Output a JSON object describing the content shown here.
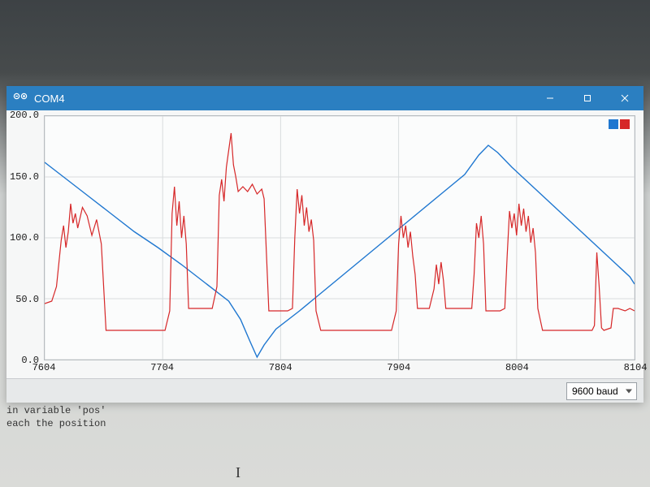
{
  "window": {
    "title": "COM4",
    "titlebar_bg": "#2b7fc1",
    "titlebar_fg": "#ffffff"
  },
  "chart": {
    "type": "line",
    "background_color": "#fbfcfc",
    "plot_bg": "#f6f7f7",
    "grid_color": "#d9dcde",
    "border_color": "#b7bcc0",
    "xlim": [
      7604,
      8104
    ],
    "ylim": [
      0.0,
      200.0
    ],
    "xticks": [
      7604,
      7704,
      7804,
      7904,
      8004,
      8104
    ],
    "yticks": [
      0.0,
      50.0,
      100.0,
      150.0,
      200.0
    ],
    "ytick_labels": [
      "0.0",
      "50.0",
      "100.0",
      "150.0",
      "200.0"
    ],
    "xtick_labels": [
      "7604",
      "7704",
      "7804",
      "7904",
      "8004",
      "8104"
    ],
    "label_font": "Consolas",
    "label_fontsize": 12,
    "label_color": "#1a1a1a",
    "legend_colors": [
      "#1f77d0",
      "#d62728"
    ],
    "series": [
      {
        "name": "blue",
        "color": "#1f77d0",
        "line_width": 1.4,
        "points": [
          [
            7604,
            162
          ],
          [
            7620,
            150
          ],
          [
            7640,
            135
          ],
          [
            7660,
            120
          ],
          [
            7680,
            105
          ],
          [
            7700,
            92
          ],
          [
            7720,
            78
          ],
          [
            7740,
            63
          ],
          [
            7760,
            48
          ],
          [
            7770,
            33
          ],
          [
            7778,
            15
          ],
          [
            7784,
            2
          ],
          [
            7790,
            12
          ],
          [
            7800,
            25
          ],
          [
            7820,
            40
          ],
          [
            7840,
            56
          ],
          [
            7860,
            72
          ],
          [
            7880,
            88
          ],
          [
            7900,
            104
          ],
          [
            7920,
            120
          ],
          [
            7940,
            136
          ],
          [
            7960,
            152
          ],
          [
            7972,
            168
          ],
          [
            7980,
            176
          ],
          [
            7988,
            170
          ],
          [
            8000,
            158
          ],
          [
            8020,
            140
          ],
          [
            8040,
            122
          ],
          [
            8060,
            104
          ],
          [
            8080,
            86
          ],
          [
            8100,
            68
          ],
          [
            8104,
            62
          ]
        ]
      },
      {
        "name": "red",
        "color": "#d62728",
        "line_width": 1.2,
        "points": [
          [
            7604,
            46
          ],
          [
            7610,
            48
          ],
          [
            7614,
            60
          ],
          [
            7618,
            98
          ],
          [
            7620,
            110
          ],
          [
            7622,
            92
          ],
          [
            7624,
            105
          ],
          [
            7626,
            128
          ],
          [
            7628,
            112
          ],
          [
            7630,
            120
          ],
          [
            7632,
            108
          ],
          [
            7636,
            125
          ],
          [
            7640,
            118
          ],
          [
            7644,
            102
          ],
          [
            7648,
            115
          ],
          [
            7652,
            95
          ],
          [
            7656,
            24
          ],
          [
            7660,
            24
          ],
          [
            7680,
            24
          ],
          [
            7700,
            24
          ],
          [
            7706,
            24
          ],
          [
            7710,
            40
          ],
          [
            7712,
            120
          ],
          [
            7714,
            142
          ],
          [
            7716,
            110
          ],
          [
            7718,
            130
          ],
          [
            7720,
            100
          ],
          [
            7722,
            118
          ],
          [
            7724,
            95
          ],
          [
            7726,
            42
          ],
          [
            7730,
            42
          ],
          [
            7740,
            42
          ],
          [
            7746,
            42
          ],
          [
            7750,
            60
          ],
          [
            7752,
            135
          ],
          [
            7754,
            148
          ],
          [
            7756,
            130
          ],
          [
            7758,
            158
          ],
          [
            7760,
            172
          ],
          [
            7762,
            186
          ],
          [
            7764,
            160
          ],
          [
            7766,
            150
          ],
          [
            7768,
            138
          ],
          [
            7772,
            142
          ],
          [
            7776,
            138
          ],
          [
            7780,
            144
          ],
          [
            7784,
            136
          ],
          [
            7788,
            140
          ],
          [
            7790,
            132
          ],
          [
            7794,
            40
          ],
          [
            7798,
            40
          ],
          [
            7810,
            40
          ],
          [
            7814,
            42
          ],
          [
            7816,
            100
          ],
          [
            7818,
            140
          ],
          [
            7820,
            120
          ],
          [
            7822,
            135
          ],
          [
            7824,
            110
          ],
          [
            7826,
            125
          ],
          [
            7828,
            105
          ],
          [
            7830,
            115
          ],
          [
            7832,
            98
          ],
          [
            7834,
            40
          ],
          [
            7838,
            24
          ],
          [
            7850,
            24
          ],
          [
            7870,
            24
          ],
          [
            7890,
            24
          ],
          [
            7898,
            24
          ],
          [
            7902,
            40
          ],
          [
            7904,
            95
          ],
          [
            7906,
            118
          ],
          [
            7908,
            100
          ],
          [
            7910,
            110
          ],
          [
            7912,
            92
          ],
          [
            7914,
            105
          ],
          [
            7916,
            85
          ],
          [
            7918,
            70
          ],
          [
            7920,
            42
          ],
          [
            7924,
            42
          ],
          [
            7930,
            42
          ],
          [
            7934,
            58
          ],
          [
            7936,
            78
          ],
          [
            7938,
            62
          ],
          [
            7940,
            80
          ],
          [
            7942,
            65
          ],
          [
            7944,
            42
          ],
          [
            7950,
            42
          ],
          [
            7960,
            42
          ],
          [
            7966,
            42
          ],
          [
            7968,
            70
          ],
          [
            7970,
            112
          ],
          [
            7972,
            100
          ],
          [
            7974,
            118
          ],
          [
            7976,
            95
          ],
          [
            7978,
            40
          ],
          [
            7982,
            40
          ],
          [
            7990,
            40
          ],
          [
            7994,
            42
          ],
          [
            7996,
            85
          ],
          [
            7998,
            122
          ],
          [
            8000,
            108
          ],
          [
            8002,
            120
          ],
          [
            8004,
            102
          ],
          [
            8006,
            128
          ],
          [
            8008,
            110
          ],
          [
            8010,
            124
          ],
          [
            8012,
            105
          ],
          [
            8014,
            118
          ],
          [
            8016,
            96
          ],
          [
            8018,
            108
          ],
          [
            8020,
            88
          ],
          [
            8022,
            42
          ],
          [
            8026,
            24
          ],
          [
            8040,
            24
          ],
          [
            8060,
            24
          ],
          [
            8068,
            24
          ],
          [
            8070,
            28
          ],
          [
            8072,
            88
          ],
          [
            8074,
            60
          ],
          [
            8076,
            26
          ],
          [
            8078,
            24
          ],
          [
            8084,
            26
          ],
          [
            8086,
            42
          ],
          [
            8090,
            42
          ],
          [
            8096,
            40
          ],
          [
            8100,
            42
          ],
          [
            8104,
            40
          ]
        ]
      }
    ]
  },
  "baud": {
    "selected": "9600 baud"
  },
  "editor": {
    "line1": "in variable 'pos'",
    "line2": "each the position"
  }
}
